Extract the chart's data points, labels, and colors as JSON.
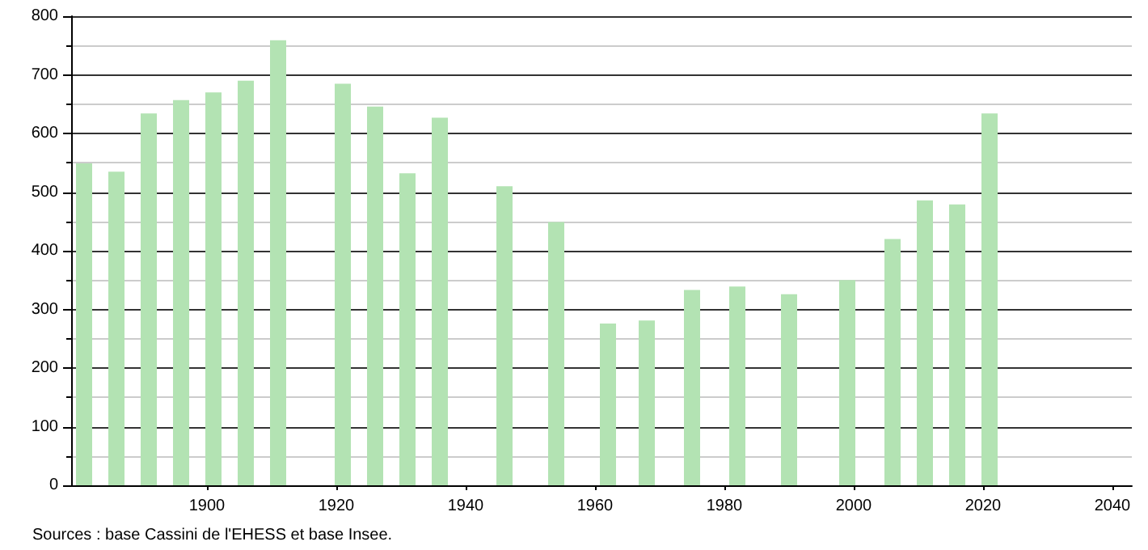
{
  "chart_data": {
    "type": "bar",
    "x": [
      1881,
      1886,
      1891,
      1896,
      1901,
      1906,
      1911,
      1921,
      1926,
      1931,
      1936,
      1946,
      1954,
      1962,
      1968,
      1975,
      1982,
      1990,
      1999,
      2006,
      2011,
      2016,
      2021
    ],
    "values": [
      549,
      535,
      634,
      657,
      670,
      690,
      759,
      685,
      646,
      532,
      627,
      510,
      449,
      276,
      281,
      333,
      339,
      326,
      350,
      420,
      486,
      479,
      634
    ],
    "color": "#b3e3b3",
    "xlim": [
      1879,
      2043
    ],
    "xticks": [
      1900,
      1920,
      1940,
      1960,
      1980,
      2000,
      2020,
      2040
    ],
    "ylim": [
      0,
      800
    ],
    "yticks": [
      0,
      100,
      200,
      300,
      400,
      500,
      600,
      700,
      800
    ],
    "grid": "y",
    "annotations": [
      "Sources : base Cassini de l'EHESS et base Insee."
    ]
  }
}
